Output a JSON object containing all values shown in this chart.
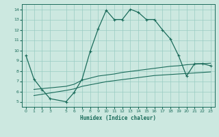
{
  "xlabel": "Humidex (Indice chaleur)",
  "bg_color": "#cce8e0",
  "grid_color": "#99ccc2",
  "line_color": "#1a6b5a",
  "xlim": [
    -0.5,
    23.5
  ],
  "ylim": [
    4.5,
    14.5
  ],
  "xticks": [
    0,
    1,
    2,
    3,
    5,
    6,
    7,
    8,
    9,
    10,
    11,
    12,
    13,
    14,
    15,
    16,
    17,
    18,
    19,
    20,
    21,
    22,
    23
  ],
  "yticks": [
    5,
    6,
    7,
    8,
    9,
    10,
    11,
    12,
    13,
    14
  ],
  "curve1_x": [
    0,
    1,
    2,
    3,
    5,
    6,
    7,
    8,
    9,
    10,
    11,
    12,
    13,
    14,
    15,
    16,
    17,
    18,
    19,
    20,
    21,
    22,
    23
  ],
  "curve1_y": [
    9.5,
    7.2,
    6.2,
    5.3,
    5.0,
    5.9,
    7.2,
    9.9,
    12.1,
    13.9,
    13.0,
    13.0,
    14.0,
    13.7,
    13.0,
    13.0,
    12.0,
    11.1,
    9.5,
    7.5,
    8.7,
    8.7,
    8.5
  ],
  "curve2_x": [
    1,
    5,
    6,
    7,
    8,
    9,
    10,
    11,
    12,
    13,
    14,
    15,
    16,
    17,
    18,
    19,
    20,
    21,
    22,
    23
  ],
  "curve2_y": [
    6.2,
    6.5,
    6.7,
    7.1,
    7.3,
    7.5,
    7.6,
    7.7,
    7.85,
    7.95,
    8.05,
    8.15,
    8.25,
    8.35,
    8.45,
    8.5,
    8.6,
    8.65,
    8.7,
    8.75
  ],
  "curve3_x": [
    1,
    5,
    6,
    7,
    8,
    9,
    10,
    11,
    12,
    13,
    14,
    15,
    16,
    17,
    18,
    19,
    20,
    21,
    22,
    23
  ],
  "curve3_y": [
    5.6,
    6.1,
    6.25,
    6.5,
    6.65,
    6.8,
    6.95,
    7.05,
    7.15,
    7.25,
    7.35,
    7.45,
    7.55,
    7.6,
    7.65,
    7.7,
    7.75,
    7.8,
    7.85,
    7.9
  ]
}
